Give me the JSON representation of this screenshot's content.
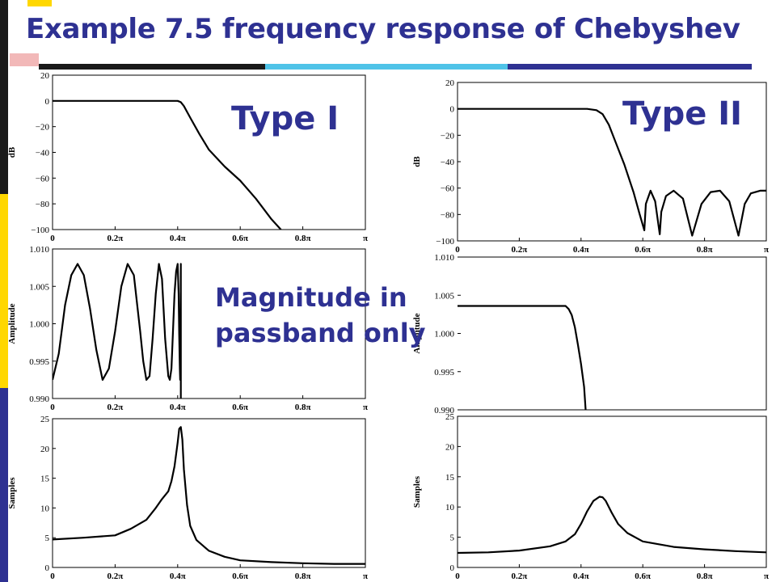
{
  "title": "Example 7.5  frequency response of Chebyshev",
  "labels": {
    "type1": "Type I",
    "type2": "Type II",
    "passband_line1": "Magnitude in",
    "passband_line2": "passband only"
  },
  "colors": {
    "title": "#2E3192",
    "accent_yellow": "#FFD700",
    "accent_blue": "#2E3192",
    "accent_cyan": "#4FC3E8",
    "accent_black": "#1A1A1A",
    "curve": "#000000"
  },
  "chart_data": [
    {
      "id": "type1-db",
      "type": "line",
      "title": "",
      "xlabel": "",
      "ylabel": "dB",
      "xlim": [
        0,
        1
      ],
      "ylim": [
        -100,
        20
      ],
      "xticks": [
        0,
        0.2,
        0.4,
        0.6,
        0.8,
        1
      ],
      "xticklabels": [
        "0",
        "0.2π",
        "0.4π",
        "0.6π",
        "0.8π",
        "π"
      ],
      "yticks": [
        20,
        0,
        -20,
        -40,
        -60,
        -80,
        -100
      ],
      "yticklabels": [
        "20",
        "0",
        "−20",
        "−40",
        "−60",
        "−80",
        "−100"
      ],
      "series": [
        {
          "x": [
            0,
            0.2,
            0.38,
            0.4,
            0.41,
            0.42,
            0.44,
            0.47,
            0.5,
            0.55,
            0.6,
            0.65,
            0.7,
            0.73
          ],
          "y": [
            0,
            0,
            0,
            0,
            -1,
            -4,
            -13,
            -26,
            -38,
            -51,
            -62,
            -76,
            -92,
            -100
          ]
        }
      ]
    },
    {
      "id": "type2-db",
      "type": "line",
      "title": "",
      "xlabel": "",
      "ylabel": "dB",
      "xlim": [
        0,
        1
      ],
      "ylim": [
        -100,
        20
      ],
      "xticks": [
        0,
        0.2,
        0.4,
        0.6,
        0.8,
        1
      ],
      "xticklabels": [
        "0",
        "0.2π",
        "0.4π",
        "0.6π",
        "0.8π",
        "π"
      ],
      "yticks": [
        20,
        0,
        -20,
        -40,
        -60,
        -80,
        -100
      ],
      "yticklabels": [
        "20",
        "0",
        "−20",
        "−40",
        "−60",
        "−80",
        "−100"
      ],
      "series": [
        {
          "x": [
            0,
            0.3,
            0.42,
            0.45,
            0.47,
            0.49,
            0.51,
            0.54,
            0.57,
            0.59,
            0.605,
            0.61,
            0.625,
            0.64,
            0.655,
            0.66,
            0.675,
            0.7,
            0.73,
            0.76,
            0.79,
            0.82,
            0.85,
            0.88,
            0.91,
            0.93,
            0.95,
            0.98,
            1
          ],
          "y": [
            0,
            0,
            0,
            -1,
            -4,
            -12,
            -24,
            -42,
            -63,
            -80,
            -92,
            -72,
            -62,
            -70,
            -95,
            -78,
            -66,
            -62,
            -68,
            -96,
            -72,
            -63,
            -62,
            -70,
            -96,
            -72,
            -64,
            -62,
            -62
          ]
        }
      ]
    },
    {
      "id": "type1-passband",
      "type": "line",
      "title": "",
      "xlabel": "",
      "ylabel": "Amplitude",
      "xlim": [
        0,
        1
      ],
      "ylim": [
        0.99,
        1.01
      ],
      "xticks": [
        0,
        0.2,
        0.4,
        0.6,
        0.8,
        1
      ],
      "xticklabels": [
        "0",
        "0.2π",
        "0.4π",
        "0.6π",
        "0.8π",
        "π"
      ],
      "yticks": [
        1.01,
        1.005,
        1.0,
        0.995,
        0.99
      ],
      "yticklabels": [
        "1.010",
        "1.005",
        "1.000",
        "0.995",
        "0.990"
      ],
      "series": [
        {
          "x": [
            0,
            0.02,
            0.04,
            0.06,
            0.08,
            0.1,
            0.12,
            0.14,
            0.16,
            0.18,
            0.2,
            0.22,
            0.24,
            0.26,
            0.28,
            0.29,
            0.3,
            0.31,
            0.32,
            0.33,
            0.34,
            0.35,
            0.36,
            0.37,
            0.375,
            0.38,
            0.385,
            0.39,
            0.395,
            0.4,
            0.403,
            0.405,
            0.407,
            0.408,
            0.409,
            0.41,
            0.41
          ],
          "y": [
            0.9925,
            0.996,
            1.0025,
            1.0065,
            1.008,
            1.0065,
            1.002,
            0.9965,
            0.9925,
            0.994,
            0.999,
            1.005,
            1.008,
            1.0065,
            0.999,
            0.995,
            0.9925,
            0.993,
            0.998,
            1.004,
            1.008,
            1.006,
            0.998,
            0.993,
            0.9925,
            0.994,
            0.999,
            1.004,
            1.007,
            1.008,
            1.004,
            0.9985,
            0.994,
            0.9925,
            0.995,
            1.008,
            0.99
          ]
        }
      ]
    },
    {
      "id": "type2-passband",
      "type": "line",
      "title": "",
      "xlabel": "",
      "ylabel": "Amplitude",
      "xlim": [
        0,
        1
      ],
      "ylim": [
        0.99,
        1.01
      ],
      "xticks": [],
      "xticklabels": [],
      "yticks": [
        1.01,
        1.005,
        1.0,
        0.995,
        0.99
      ],
      "yticklabels": [
        "1.010",
        "1.005",
        "1.000",
        "0.995",
        "0.990"
      ],
      "series": [
        {
          "x": [
            0,
            0.2,
            0.35,
            0.36,
            0.37,
            0.38,
            0.39,
            0.4,
            0.41,
            0.415
          ],
          "y": [
            1.0036,
            1.0036,
            1.0036,
            1.0032,
            1.0024,
            1.0008,
            0.9985,
            0.996,
            0.993,
            0.99
          ]
        }
      ]
    },
    {
      "id": "type1-group-delay",
      "type": "line",
      "title": "",
      "xlabel": "",
      "ylabel": "Samples",
      "xlim": [
        0,
        1
      ],
      "ylim": [
        0,
        25
      ],
      "xticks": [
        0,
        0.2,
        0.4,
        0.6,
        0.8,
        1
      ],
      "xticklabels": [
        "0",
        "0.2π",
        "0.4π",
        "0.6π",
        "0.8π",
        "π"
      ],
      "yticks": [
        0,
        5,
        10,
        15,
        20,
        25
      ],
      "yticklabels": [
        "0",
        "5",
        "10",
        "15",
        "20",
        "25"
      ],
      "series": [
        {
          "x": [
            0,
            0.1,
            0.2,
            0.25,
            0.3,
            0.33,
            0.35,
            0.37,
            0.38,
            0.39,
            0.4,
            0.405,
            0.41,
            0.415,
            0.42,
            0.43,
            0.44,
            0.46,
            0.5,
            0.55,
            0.6,
            0.7,
            0.8,
            0.9,
            1
          ],
          "y": [
            4.7,
            5.0,
            5.4,
            6.5,
            8.0,
            10.0,
            11.5,
            12.8,
            14.5,
            17.0,
            21.0,
            23.3,
            23.6,
            21.5,
            16.5,
            10.5,
            7.0,
            4.6,
            2.8,
            1.8,
            1.2,
            0.9,
            0.7,
            0.6,
            0.6
          ]
        }
      ]
    },
    {
      "id": "type2-group-delay",
      "type": "line",
      "title": "",
      "xlabel": "",
      "ylabel": "Samples",
      "xlim": [
        0,
        1
      ],
      "ylim": [
        0,
        25
      ],
      "xticks": [
        0,
        0.2,
        0.4,
        0.6,
        0.8,
        1
      ],
      "xticklabels": [
        "0",
        "0.2π",
        "0.4π",
        "0.6π",
        "0.8π",
        "π"
      ],
      "yticks": [
        0,
        5,
        10,
        15,
        20,
        25
      ],
      "yticklabels": [
        "0",
        "5",
        "10",
        "15",
        "20",
        "25"
      ],
      "series": [
        {
          "x": [
            0,
            0.1,
            0.2,
            0.3,
            0.35,
            0.38,
            0.4,
            0.42,
            0.44,
            0.46,
            0.47,
            0.48,
            0.5,
            0.52,
            0.55,
            0.6,
            0.7,
            0.8,
            0.9,
            1
          ],
          "y": [
            2.4,
            2.5,
            2.8,
            3.5,
            4.3,
            5.5,
            7.2,
            9.3,
            11.0,
            11.7,
            11.6,
            11.0,
            9.0,
            7.2,
            5.7,
            4.3,
            3.4,
            3.0,
            2.7,
            2.5
          ]
        }
      ]
    }
  ]
}
